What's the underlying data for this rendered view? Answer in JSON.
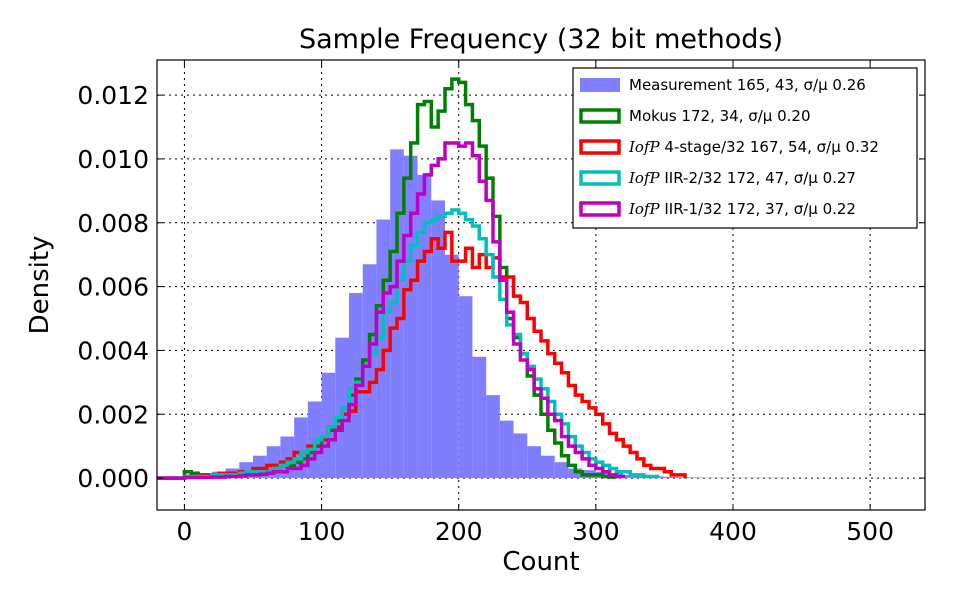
{
  "chart_data": {
    "type": "histogram",
    "title": "Sample Frequency (32 bit methods)",
    "xlabel": "Count",
    "ylabel": "Density",
    "xlim": [
      -20,
      540
    ],
    "ylim": [
      -0.001,
      0.0131
    ],
    "xticks": [
      0,
      100,
      200,
      300,
      400,
      500
    ],
    "xtick_labels": [
      "0",
      "100",
      "200",
      "300",
      "400",
      "500"
    ],
    "yticks": [
      0,
      0.002,
      0.004,
      0.006,
      0.008,
      0.01,
      0.012
    ],
    "ytick_labels": [
      "0.000",
      "0.002",
      "0.004",
      "0.006",
      "0.008",
      "0.010",
      "0.012"
    ],
    "grid": true,
    "legend_position": "top-right",
    "bin_width": 10,
    "series": [
      {
        "name": "Measurement  165,  43, σ/μ 0.26",
        "style": "filled",
        "color": "#8080ff",
        "bin_start": -20,
        "values": [
          3e-05,
          5e-05,
          8e-05,
          0.00012,
          0.0002,
          0.0003,
          0.0005,
          0.0007,
          0.001,
          0.0013,
          0.0019,
          0.0024,
          0.0033,
          0.0044,
          0.0058,
          0.0067,
          0.0081,
          0.0103,
          0.0101,
          0.0095,
          0.0087,
          0.007,
          0.0057,
          0.0038,
          0.0026,
          0.0018,
          0.0014,
          0.001,
          0.0007,
          0.0005,
          0.0003,
          0.00025,
          0.0002,
          0.00015,
          0.0001,
          8e-05,
          5e-05,
          4e-05,
          2e-05,
          2e-05,
          1e-05,
          1e-05,
          1e-05,
          1e-05,
          1e-05,
          1e-05
        ]
      },
      {
        "name": "Mokus  172,  34, σ/μ 0.20",
        "style": "step",
        "color": "#008000",
        "bin_start": 0,
        "bin_width": 5,
        "values": [
          0.0002,
          0.00015,
          0.0001,
          0.0001,
          0.0001,
          0.0001,
          0.0001,
          0.00015,
          0.0002,
          0.0002,
          0.0002,
          0.0002,
          0.0002,
          0.0003,
          0.0004,
          0.0004,
          0.0005,
          0.0006,
          0.0008,
          0.001,
          0.0012,
          0.0015,
          0.0018,
          0.0022,
          0.0026,
          0.0031,
          0.0037,
          0.0045,
          0.0054,
          0.0062,
          0.0071,
          0.0083,
          0.0094,
          0.0105,
          0.0117,
          0.0118,
          0.011,
          0.0115,
          0.0122,
          0.0125,
          0.0124,
          0.0117,
          0.0112,
          0.0104,
          0.0094,
          0.0082,
          0.0066,
          0.005,
          0.0044,
          0.0039,
          0.0032,
          0.0026,
          0.002,
          0.0015,
          0.0011,
          0.0007,
          0.0004,
          0.0002,
          0.0001,
          0.0001,
          0.0001,
          5e-05,
          3e-05
        ]
      },
      {
        "name": "4-stage/32  167,  54, σ/μ 0.32",
        "label_prefix": "IofP",
        "style": "step",
        "color": "#ff0000",
        "bin_start": 0,
        "bin_width": 5,
        "values": [
          5e-05,
          5e-05,
          0.0001,
          0.0001,
          0.0001,
          0.00015,
          0.00015,
          0.00015,
          0.0002,
          0.0002,
          0.0003,
          0.0003,
          0.0004,
          0.0004,
          0.0005,
          0.0006,
          0.0008,
          0.0008,
          0.001,
          0.0012,
          0.0012,
          0.0016,
          0.0016,
          0.002,
          0.0021,
          0.0027,
          0.0027,
          0.003,
          0.0034,
          0.004,
          0.0047,
          0.005,
          0.0059,
          0.0062,
          0.0068,
          0.0071,
          0.0075,
          0.0072,
          0.0077,
          0.0068,
          0.0068,
          0.0072,
          0.0066,
          0.007,
          0.0066,
          0.0069,
          0.0063,
          0.0063,
          0.0057,
          0.0055,
          0.005,
          0.0046,
          0.0043,
          0.0039,
          0.0036,
          0.0033,
          0.0029,
          0.0026,
          0.0024,
          0.0022,
          0.002,
          0.0017,
          0.0014,
          0.0012,
          0.001,
          0.0008,
          0.0006,
          0.0004,
          0.0003,
          0.0003,
          0.0002,
          0.0001,
          0.0001
        ]
      },
      {
        "name": "IIR-2/32  172,  47, σ/μ 0.27",
        "label_prefix": "IofP",
        "style": "step",
        "color": "#00bfbf",
        "bin_start": 0,
        "bin_width": 5,
        "values": [
          5e-05,
          5e-05,
          5e-05,
          5e-05,
          0.0001,
          0.0001,
          0.0001,
          0.0001,
          0.00015,
          0.0002,
          0.0002,
          0.0002,
          0.0002,
          0.0003,
          0.0004,
          0.0005,
          0.0006,
          0.0008,
          0.0009,
          0.0012,
          0.0013,
          0.0016,
          0.0019,
          0.0022,
          0.0028,
          0.003,
          0.0035,
          0.0039,
          0.0044,
          0.0052,
          0.0055,
          0.0062,
          0.0068,
          0.0073,
          0.0077,
          0.008,
          0.0081,
          0.0082,
          0.0083,
          0.0084,
          0.0083,
          0.0081,
          0.0079,
          0.0075,
          0.007,
          0.0063,
          0.0056,
          0.0048,
          0.0045,
          0.0039,
          0.0035,
          0.0031,
          0.0028,
          0.0024,
          0.002,
          0.0017,
          0.0013,
          0.001,
          0.0008,
          0.0006,
          0.0005,
          0.0004,
          0.0003,
          0.0002,
          0.0002,
          0.0001,
          0.0001,
          5e-05,
          5e-05
        ]
      },
      {
        "name": "IIR-1/32  172,  37, σ/μ 0.22",
        "label_prefix": "IofP",
        "style": "step",
        "color": "#bf00bf",
        "bin_start": 0,
        "bin_width": 5,
        "values": [
          2e-05,
          2e-05,
          2e-05,
          2e-05,
          3e-05,
          3e-05,
          5e-05,
          5e-05,
          7e-05,
          0.0001,
          0.0001,
          0.00012,
          0.00015,
          0.0002,
          0.0002,
          0.0003,
          0.0003,
          0.0004,
          0.0006,
          0.0008,
          0.001,
          0.0012,
          0.0015,
          0.0018,
          0.0023,
          0.0029,
          0.0035,
          0.0042,
          0.0052,
          0.0058,
          0.006,
          0.0068,
          0.0076,
          0.0083,
          0.0089,
          0.0095,
          0.0098,
          0.01,
          0.0105,
          0.0105,
          0.0104,
          0.0105,
          0.0101,
          0.0093,
          0.0087,
          0.0074,
          0.0062,
          0.0052,
          0.0042,
          0.0037,
          0.0034,
          0.0028,
          0.0025,
          0.002,
          0.0018,
          0.0013,
          0.001,
          0.0008,
          0.0006,
          0.0004,
          0.0003,
          0.0002,
          0.0001,
          5e-05
        ]
      }
    ]
  }
}
